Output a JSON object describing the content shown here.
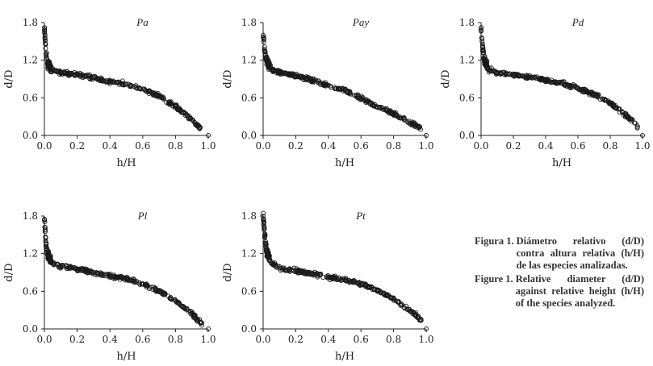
{
  "chart_data": [
    {
      "type": "scatter",
      "panel": "Pa",
      "title": "Pa",
      "xlabel": "h/H",
      "ylabel": "d/D",
      "xlim": [
        0,
        1
      ],
      "ylim": [
        0,
        1.8
      ],
      "xticks": [
        "0.0",
        "0.2",
        "0.4",
        "0.6",
        "0.8",
        "1.0"
      ],
      "yticks": [
        "0.0",
        "0.6",
        "1.2",
        "1.8"
      ],
      "x": [
        0.0,
        0.01,
        0.02,
        0.05,
        0.1,
        0.2,
        0.3,
        0.4,
        0.5,
        0.6,
        0.7,
        0.8,
        0.85,
        0.9,
        0.93,
        0.95,
        1.0
      ],
      "y": [
        1.72,
        1.3,
        1.15,
        1.04,
        1.0,
        0.97,
        0.92,
        0.86,
        0.82,
        0.74,
        0.63,
        0.46,
        0.37,
        0.25,
        0.16,
        0.12,
        0.0
      ]
    },
    {
      "type": "scatter",
      "panel": "Pay",
      "title": "Pay",
      "xlabel": "h/H",
      "ylabel": "d/D",
      "xlim": [
        0,
        1
      ],
      "ylim": [
        0,
        1.8
      ],
      "xticks": [
        "0.0",
        "0.2",
        "0.4",
        "0.6",
        "0.8",
        "1.0"
      ],
      "yticks": [
        "0.0",
        "0.6",
        "1.2",
        "1.8"
      ],
      "x": [
        0.0,
        0.01,
        0.02,
        0.05,
        0.1,
        0.2,
        0.3,
        0.4,
        0.5,
        0.6,
        0.7,
        0.8,
        0.85,
        0.9,
        0.95,
        1.0
      ],
      "y": [
        1.6,
        1.35,
        1.2,
        1.05,
        1.0,
        0.95,
        0.88,
        0.8,
        0.72,
        0.6,
        0.45,
        0.35,
        0.28,
        0.2,
        0.15,
        0.0
      ]
    },
    {
      "type": "scatter",
      "panel": "Pd",
      "title": "Pd",
      "xlabel": "h/H",
      "ylabel": "d/D",
      "xlim": [
        0,
        1
      ],
      "ylim": [
        0,
        1.8
      ],
      "xticks": [
        "0.0",
        "0.2",
        "0.4",
        "0.6",
        "0.8",
        "1.0"
      ],
      "yticks": [
        "0.0",
        "0.6",
        "1.2",
        "1.8"
      ],
      "x": [
        0.0,
        0.01,
        0.02,
        0.05,
        0.1,
        0.2,
        0.3,
        0.4,
        0.5,
        0.6,
        0.7,
        0.8,
        0.85,
        0.9,
        0.95,
        1.0
      ],
      "y": [
        1.7,
        1.4,
        1.2,
        1.05,
        1.0,
        0.97,
        0.93,
        0.88,
        0.83,
        0.76,
        0.66,
        0.52,
        0.42,
        0.32,
        0.2,
        0.0
      ]
    },
    {
      "type": "scatter",
      "panel": "Pl",
      "title": "Pl",
      "xlabel": "h/H",
      "ylabel": "d/D",
      "xlim": [
        0,
        1
      ],
      "ylim": [
        0,
        1.8
      ],
      "xticks": [
        "0.0",
        "0.2",
        "0.4",
        "0.6",
        "0.8",
        "1.0"
      ],
      "yticks": [
        "0.0",
        "0.6",
        "1.2",
        "1.8"
      ],
      "x": [
        0.0,
        0.01,
        0.02,
        0.05,
        0.1,
        0.2,
        0.3,
        0.4,
        0.5,
        0.6,
        0.7,
        0.8,
        0.85,
        0.9,
        0.93,
        1.0
      ],
      "y": [
        1.75,
        1.35,
        1.18,
        1.05,
        1.0,
        0.96,
        0.9,
        0.85,
        0.8,
        0.72,
        0.6,
        0.45,
        0.35,
        0.25,
        0.15,
        0.0
      ]
    },
    {
      "type": "scatter",
      "panel": "Pt",
      "title": "Pt",
      "xlabel": "h/H",
      "ylabel": "d/D",
      "xlim": [
        0,
        1
      ],
      "ylim": [
        0,
        1.8
      ],
      "xticks": [
        "0.0",
        "0.2",
        "0.4",
        "0.6",
        "0.8",
        "1.0"
      ],
      "yticks": [
        "0.0",
        "0.6",
        "1.2",
        "1.8"
      ],
      "x": [
        0.0,
        0.01,
        0.02,
        0.05,
        0.1,
        0.2,
        0.3,
        0.4,
        0.5,
        0.6,
        0.7,
        0.8,
        0.85,
        0.9,
        0.95,
        1.0
      ],
      "y": [
        1.8,
        1.5,
        1.25,
        1.05,
        0.97,
        0.93,
        0.88,
        0.83,
        0.78,
        0.72,
        0.62,
        0.48,
        0.38,
        0.28,
        0.2,
        0.0
      ]
    }
  ],
  "caption": {
    "es_label": "Figura 1.",
    "es_text": "Diámetro relativo (d/D) contra altura relativa (h/H) de las especies analizadas.",
    "en_label": "Figure 1.",
    "en_text": "Relative diameter (d/D) against relative height (h/H) of the species analyzed."
  }
}
